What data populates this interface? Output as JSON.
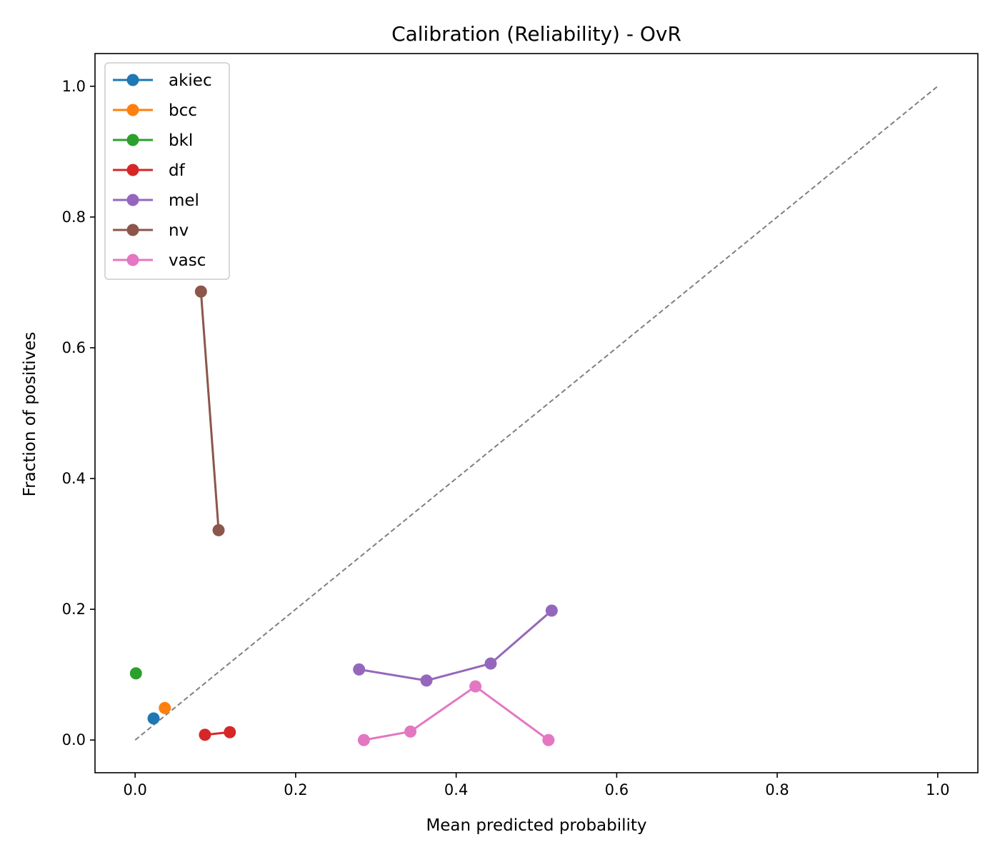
{
  "chart_data": {
    "type": "line",
    "title": "Calibration (Reliability) - OvR",
    "xlabel": "Mean predicted probability",
    "ylabel": "Fraction of positives",
    "xlim": [
      -0.05,
      1.05
    ],
    "ylim": [
      -0.05,
      1.05
    ],
    "xticks": [
      0.0,
      0.2,
      0.4,
      0.6,
      0.8,
      1.0
    ],
    "yticks": [
      0.0,
      0.2,
      0.4,
      0.6,
      0.8,
      1.0
    ],
    "tick_labels": [
      "0.0",
      "0.2",
      "0.4",
      "0.6",
      "0.8",
      "1.0"
    ],
    "grid": false,
    "legend_position": "top-left",
    "reference_line": {
      "x": [
        0.0,
        1.0
      ],
      "y": [
        0.0,
        1.0
      ],
      "style": "dashed",
      "color": "#808080"
    },
    "series": [
      {
        "name": "akiec",
        "color": "#1f77b4",
        "x": [
          0.023
        ],
        "y": [
          0.033
        ]
      },
      {
        "name": "bcc",
        "color": "#ff7f0e",
        "x": [
          0.037
        ],
        "y": [
          0.049
        ]
      },
      {
        "name": "bkl",
        "color": "#2ca02c",
        "x": [
          0.001
        ],
        "y": [
          0.102
        ]
      },
      {
        "name": "df",
        "color": "#d62728",
        "x": [
          0.087,
          0.118
        ],
        "y": [
          0.008,
          0.012
        ]
      },
      {
        "name": "mel",
        "color": "#9467bd",
        "x": [
          0.279,
          0.363,
          0.443,
          0.519
        ],
        "y": [
          0.108,
          0.091,
          0.117,
          0.198
        ]
      },
      {
        "name": "nv",
        "color": "#8c564b",
        "x": [
          0.082,
          0.104
        ],
        "y": [
          0.686,
          0.321
        ]
      },
      {
        "name": "vasc",
        "color": "#e377c2",
        "x": [
          0.285,
          0.343,
          0.424,
          0.515
        ],
        "y": [
          0.0,
          0.013,
          0.082,
          0.0
        ]
      }
    ]
  }
}
